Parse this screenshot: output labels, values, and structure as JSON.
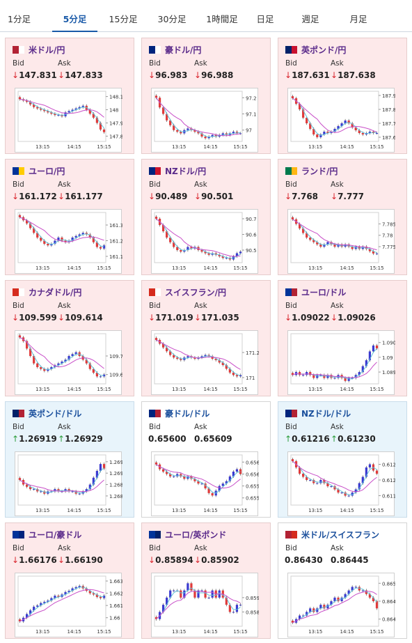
{
  "tabs": [
    {
      "label": "1分足",
      "active": false
    },
    {
      "label": "5分足",
      "active": true
    },
    {
      "label": "15分足",
      "active": false
    },
    {
      "label": "30分足",
      "active": false
    },
    {
      "label": "1時間足",
      "active": false
    },
    {
      "label": "日足",
      "active": false
    },
    {
      "label": "週足",
      "active": false
    },
    {
      "label": "月足",
      "active": false
    }
  ],
  "labels": {
    "bid": "Bid",
    "ask": "Ask"
  },
  "colors": {
    "up_candle": "#3a3ad0",
    "down_candle": "#e03a3a",
    "ma_fast": "#5fc0d8",
    "ma_slow": "#c84ec8",
    "down_arrow": "#d9242c",
    "up_arrow": "#2a9c3a"
  },
  "pairs": [
    {
      "name": "米ドル/円",
      "flag": [
        "#b22234",
        "#ffffff"
      ],
      "dir": "down",
      "bid": "147.831",
      "ask": "147.833",
      "chart_data": {
        "type": "candlestick",
        "x_labels": [
          "13:15",
          "14:15",
          "15:15"
        ],
        "y_ticks": [
          "148.1",
          "148",
          "147.9",
          "147.8"
        ],
        "ylim": [
          147.76,
          148.14
        ],
        "closes": [
          148.08,
          148.07,
          148.06,
          148.04,
          148.02,
          148.01,
          148.0,
          147.99,
          147.98,
          147.97,
          147.96,
          147.96,
          147.95,
          147.98,
          147.99,
          148.0,
          148.01,
          148.02,
          148.03,
          148.0,
          147.97,
          147.94,
          147.9,
          147.85,
          147.83
        ]
      }
    },
    {
      "name": "豪ドル/円",
      "flag": [
        "#00247d",
        "#ffffff"
      ],
      "dir": "down",
      "bid": "96.983",
      "ask": "96.988",
      "chart_data": {
        "type": "candlestick",
        "x_labels": [
          "13:15",
          "14:15",
          "15:15"
        ],
        "y_ticks": [
          "97.2",
          "97.1",
          "97"
        ],
        "ylim": [
          96.93,
          97.24
        ],
        "closes": [
          97.2,
          97.14,
          97.1,
          97.06,
          97.03,
          97.0,
          96.99,
          96.98,
          97.0,
          97.01,
          97.0,
          96.99,
          96.98,
          96.96,
          96.95,
          96.96,
          96.97,
          96.96,
          96.97,
          96.98,
          96.97,
          96.98,
          96.99,
          96.98,
          96.98
        ]
      }
    },
    {
      "name": "英ポンド/円",
      "flag": [
        "#012169",
        "#c8102e"
      ],
      "dir": "down",
      "bid": "187.631",
      "ask": "187.638",
      "chart_data": {
        "type": "candlestick",
        "x_labels": [
          "13:15",
          "14:15",
          "15:15"
        ],
        "y_ticks": [
          "187.9",
          "187.8",
          "187.7",
          "187.6"
        ],
        "ylim": [
          187.57,
          187.93
        ],
        "closes": [
          187.88,
          187.84,
          187.8,
          187.74,
          187.7,
          187.66,
          187.62,
          187.6,
          187.62,
          187.64,
          187.63,
          187.64,
          187.66,
          187.68,
          187.7,
          187.72,
          187.7,
          187.67,
          187.65,
          187.63,
          187.62,
          187.63,
          187.64,
          187.63,
          187.63
        ]
      }
    },
    {
      "name": "ユーロ/円",
      "flag": [
        "#003399",
        "#ffcc00"
      ],
      "dir": "down",
      "bid": "161.172",
      "ask": "161.177",
      "chart_data": {
        "type": "candlestick",
        "x_labels": [
          "13:15",
          "14:15",
          "15:15"
        ],
        "y_ticks": [
          "161.3",
          "161.2",
          "161.1"
        ],
        "ylim": [
          161.06,
          161.38
        ],
        "closes": [
          161.35,
          161.33,
          161.31,
          161.28,
          161.25,
          161.22,
          161.2,
          161.18,
          161.17,
          161.18,
          161.2,
          161.22,
          161.2,
          161.19,
          161.2,
          161.22,
          161.23,
          161.24,
          161.25,
          161.24,
          161.22,
          161.19,
          161.16,
          161.15,
          161.17
        ]
      }
    },
    {
      "name": "NZドル/円",
      "flag": [
        "#00247d",
        "#cc142b"
      ],
      "dir": "down",
      "bid": "90.489",
      "ask": "90.501",
      "chart_data": {
        "type": "candlestick",
        "x_labels": [
          "13:15",
          "14:15",
          "15:15"
        ],
        "y_ticks": [
          "90.7",
          "90.6",
          "90.5"
        ],
        "ylim": [
          90.42,
          90.74
        ],
        "closes": [
          90.7,
          90.66,
          90.62,
          90.58,
          90.55,
          90.52,
          90.5,
          90.49,
          90.5,
          90.52,
          90.51,
          90.52,
          90.5,
          90.49,
          90.48,
          90.47,
          90.48,
          90.47,
          90.46,
          90.45,
          90.45,
          90.44,
          90.46,
          90.48,
          90.49
        ]
      }
    },
    {
      "name": "ランド/円",
      "flag": [
        "#007a4d",
        "#ffb612"
      ],
      "dir": "down",
      "bid": "7.768",
      "ask": "7.777",
      "chart_data": {
        "type": "candlestick",
        "x_labels": [
          "13:15",
          "14:15",
          "15:15"
        ],
        "y_ticks": [
          "7.785",
          "7.78",
          "7.775"
        ],
        "ylim": [
          7.768,
          7.79
        ],
        "closes": [
          7.787,
          7.785,
          7.783,
          7.781,
          7.779,
          7.778,
          7.777,
          7.776,
          7.775,
          7.776,
          7.777,
          7.776,
          7.775,
          7.776,
          7.775,
          7.776,
          7.775,
          7.774,
          7.775,
          7.774,
          7.775,
          7.774,
          7.773,
          7.772,
          7.772
        ]
      }
    },
    {
      "name": "カナダドル/円",
      "flag": [
        "#d52b1e",
        "#ffffff"
      ],
      "dir": "down",
      "bid": "109.599",
      "ask": "109.614",
      "chart_data": {
        "type": "candlestick",
        "x_labels": [
          "13:15",
          "14:15",
          "15:15"
        ],
        "y_ticks": [
          "109.7",
          "109.6"
        ],
        "ylim": [
          109.55,
          109.82
        ],
        "closes": [
          109.8,
          109.78,
          109.74,
          109.7,
          109.66,
          109.64,
          109.63,
          109.62,
          109.63,
          109.64,
          109.65,
          109.66,
          109.67,
          109.68,
          109.7,
          109.71,
          109.72,
          109.7,
          109.68,
          109.66,
          109.63,
          109.61,
          109.59,
          109.59,
          109.6
        ]
      }
    },
    {
      "name": "スイスフラン/円",
      "flag": [
        "#d52b1e",
        "#ffffff"
      ],
      "dir": "down",
      "bid": "171.019",
      "ask": "171.035",
      "chart_data": {
        "type": "candlestick",
        "x_labels": [
          "13:15",
          "14:15",
          "15:15"
        ],
        "y_ticks": [
          "171.2",
          "171"
        ],
        "ylim": [
          170.95,
          171.35
        ],
        "closes": [
          171.3,
          171.27,
          171.24,
          171.21,
          171.18,
          171.16,
          171.15,
          171.14,
          171.16,
          171.17,
          171.16,
          171.15,
          171.16,
          171.17,
          171.18,
          171.17,
          171.15,
          171.14,
          171.12,
          171.1,
          171.07,
          171.04,
          171.02,
          171.01,
          171.02
        ]
      }
    },
    {
      "name": "ユーロ/ドル",
      "flag": [
        "#003399",
        "#b22234"
      ],
      "dir": "down",
      "bid": "1.09022",
      "ask": "1.09026",
      "chart_data": {
        "type": "candlestick",
        "x_labels": [
          "13:15",
          "14:15",
          "15:15"
        ],
        "y_ticks": [
          "1.0905",
          "1.09",
          "1.0895"
        ],
        "ylim": [
          1.0891,
          1.0908
        ],
        "closes": [
          1.0894,
          1.0895,
          1.0894,
          1.0894,
          1.0895,
          1.0894,
          1.0893,
          1.0894,
          1.0894,
          1.0893,
          1.0894,
          1.0893,
          1.0893,
          1.0894,
          1.0893,
          1.0892,
          1.0893,
          1.0893,
          1.0894,
          1.0895,
          1.0897,
          1.0899,
          1.0902,
          1.0904,
          1.0903
        ]
      }
    },
    {
      "name": "英ポンド/ドル",
      "flag": [
        "#012169",
        "#b22234"
      ],
      "dir": "up",
      "bid": "1.26919",
      "ask": "1.26929",
      "chart_data": {
        "type": "candlestick",
        "x_labels": [
          "13:15",
          "14:15",
          "15:15"
        ],
        "y_ticks": [
          "1.2695",
          "1.269",
          "1.2685",
          "1.268"
        ],
        "ylim": [
          1.2676,
          1.2698
        ],
        "closes": [
          1.2687,
          1.2685,
          1.2684,
          1.2683,
          1.2683,
          1.2682,
          1.2682,
          1.2681,
          1.2682,
          1.2682,
          1.2683,
          1.2682,
          1.2682,
          1.2683,
          1.2682,
          1.2682,
          1.2681,
          1.2681,
          1.2682,
          1.2683,
          1.2685,
          1.2688,
          1.2691,
          1.2694,
          1.2692
        ]
      }
    },
    {
      "name": "豪ドル/ドル",
      "flag": [
        "#00247d",
        "#b22234"
      ],
      "dir": "none",
      "bid": "0.65600",
      "ask": "0.65609",
      "chart_data": {
        "type": "candlestick",
        "x_labels": [
          "13:15",
          "14:15",
          "15:15"
        ],
        "y_ticks": [
          "0.6565",
          "0.656",
          "0.6555",
          "0.655"
        ],
        "ylim": [
          0.6547,
          0.6568
        ],
        "closes": [
          0.6564,
          0.6562,
          0.6561,
          0.656,
          0.6559,
          0.6559,
          0.656,
          0.6559,
          0.6558,
          0.6559,
          0.6558,
          0.6557,
          0.6556,
          0.6556,
          0.6554,
          0.6552,
          0.6551,
          0.6553,
          0.6555,
          0.6556,
          0.6557,
          0.6559,
          0.6561,
          0.6562,
          0.656
        ]
      }
    },
    {
      "name": "NZドル/ドル",
      "flag": [
        "#00247d",
        "#b22234"
      ],
      "dir": "up",
      "bid": "0.61216",
      "ask": "0.61230",
      "chart_data": {
        "type": "candlestick",
        "x_labels": [
          "13:15",
          "14:15",
          "15:15"
        ],
        "y_ticks": [
          "0.6125",
          "0.612",
          "0.6115"
        ],
        "ylim": [
          0.6112,
          0.6128
        ],
        "closes": [
          0.6126,
          0.6124,
          0.6122,
          0.6121,
          0.612,
          0.612,
          0.6119,
          0.6119,
          0.612,
          0.6119,
          0.6118,
          0.6118,
          0.6117,
          0.6116,
          0.6116,
          0.6115,
          0.6115,
          0.6116,
          0.6117,
          0.6119,
          0.6121,
          0.6124,
          0.6125,
          0.6123,
          0.6122
        ]
      }
    },
    {
      "name": "ユーロ/豪ドル",
      "flag": [
        "#003399",
        "#00247d"
      ],
      "dir": "down",
      "bid": "1.66176",
      "ask": "1.66190",
      "chart_data": {
        "type": "candlestick",
        "x_labels": [
          "13:15",
          "14:15",
          "15:15"
        ],
        "y_ticks": [
          "1.663",
          "1.662",
          "1.661",
          "1.66"
        ],
        "ylim": [
          1.6593,
          1.6634
        ],
        "closes": [
          1.6597,
          1.66,
          1.6603,
          1.6606,
          1.6609,
          1.661,
          1.6612,
          1.6613,
          1.6614,
          1.6616,
          1.6618,
          1.6617,
          1.6619,
          1.6621,
          1.6622,
          1.6624,
          1.6625,
          1.6626,
          1.6624,
          1.6622,
          1.662,
          1.6619,
          1.6617,
          1.6616,
          1.6618
        ]
      }
    },
    {
      "name": "ユーロ/英ポンド",
      "flag": [
        "#003399",
        "#012169"
      ],
      "dir": "down",
      "bid": "0.85894",
      "ask": "0.85902",
      "chart_data": {
        "type": "candlestick",
        "x_labels": [
          "13:15",
          "14:15",
          "15:15"
        ],
        "y_ticks": [
          "0.859",
          "0.8588"
        ],
        "ylim": [
          0.8586,
          0.8593
        ],
        "closes": [
          0.8587,
          0.8588,
          0.8589,
          0.859,
          0.8591,
          0.8591,
          0.8591,
          0.859,
          0.8591,
          0.8592,
          0.8591,
          0.859,
          0.8591,
          0.8591,
          0.859,
          0.859,
          0.8591,
          0.859,
          0.8591,
          0.859,
          0.8589,
          0.8588,
          0.8588,
          0.8589,
          0.8589
        ]
      }
    },
    {
      "name": "米ドル/スイスフラン",
      "flag": [
        "#b22234",
        "#d52b1e"
      ],
      "dir": "none",
      "bid": "0.86430",
      "ask": "0.86445",
      "chart_data": {
        "type": "candlestick",
        "x_labels": [
          "13:15",
          "14:15",
          "15:15"
        ],
        "y_ticks": [
          "0.865",
          "0.8645",
          "0.864"
        ],
        "ylim": [
          0.8638,
          0.8652
        ],
        "closes": [
          0.8639,
          0.864,
          0.8641,
          0.8641,
          0.8642,
          0.8643,
          0.8642,
          0.8643,
          0.8644,
          0.8643,
          0.8644,
          0.8645,
          0.8646,
          0.8645,
          0.8646,
          0.8647,
          0.8648,
          0.8649,
          0.8649,
          0.8648,
          0.8648,
          0.8647,
          0.8646,
          0.8645,
          0.8643
        ]
      }
    }
  ]
}
